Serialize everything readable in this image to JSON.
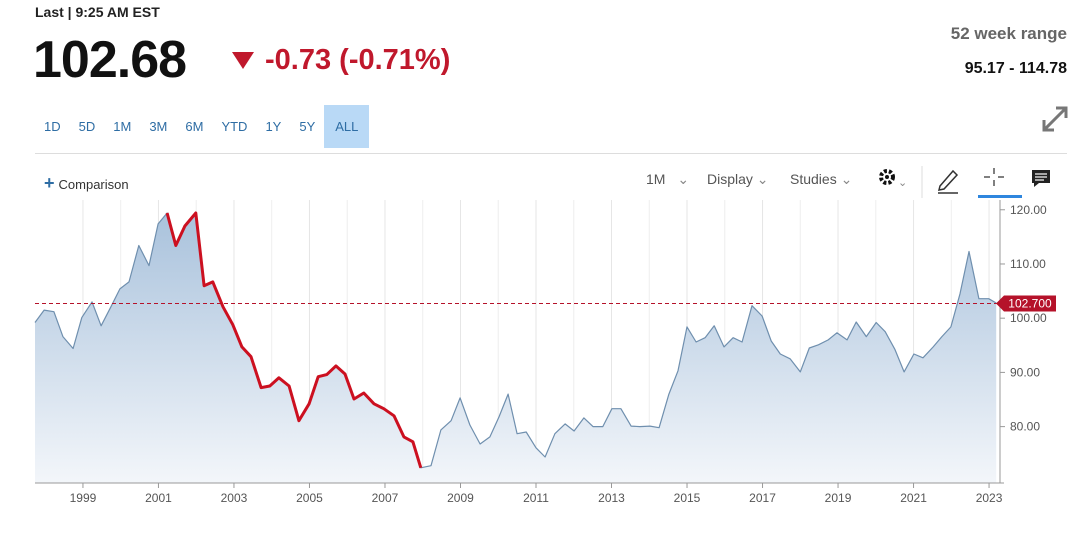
{
  "header": {
    "last": "Last | 9:25 AM EST",
    "price": "102.68",
    "change": "-0.73 (-0.71%)",
    "range_title": "52 week range",
    "range": "95.17 - 114.78"
  },
  "ranges": {
    "items": [
      "1D",
      "5D",
      "1M",
      "3M",
      "6M",
      "YTD",
      "1Y",
      "5Y",
      "ALL"
    ],
    "active": 8
  },
  "toolbar": {
    "comparison": "Comparison",
    "interval": "1M",
    "display": "Display",
    "studies": "Studies"
  },
  "chart_data": {
    "type": "area",
    "xlim": [
      1997.73,
      2023.29
    ],
    "ylim": [
      69.6,
      121.8
    ],
    "xticks": [
      1999,
      2001,
      2003,
      2005,
      2007,
      2009,
      2011,
      2013,
      2015,
      2017,
      2019,
      2021,
      2023
    ],
    "yticks": [
      {
        "value": 80,
        "label": "80.00"
      },
      {
        "value": 90,
        "label": "90.00"
      },
      {
        "value": 100,
        "label": "100.00"
      },
      {
        "value": 110,
        "label": "110.00"
      },
      {
        "value": 120,
        "label": "120.00"
      }
    ],
    "grid": true,
    "last_price": {
      "value": 102.7,
      "label": "102.700",
      "color": "#b5122a"
    },
    "series": [
      {
        "color": "#6f8fae",
        "fill": "#c9d9ea",
        "x": [
          1997.73,
          1997.97,
          1998.23,
          1998.47,
          1998.74,
          1998.97,
          1999.24,
          1999.48,
          1999.74,
          1999.98,
          2000.22,
          2000.48,
          2000.75,
          2000.99,
          2001.23,
          2001.46,
          2001.7,
          2001.99,
          2002.21,
          2002.44,
          2002.71,
          2002.97,
          2003.21,
          2003.45,
          2003.72,
          2003.95,
          2004.19,
          2004.46,
          2004.72,
          2004.99,
          2005.23,
          2005.46,
          2005.7,
          2005.94,
          2006.18,
          2006.44,
          2006.71,
          2006.97,
          2007.24,
          2007.5,
          2007.74,
          2007.95,
          2008.22,
          2008.48,
          2008.75,
          2008.99,
          2009.25,
          2009.52,
          2009.78,
          2010.02,
          2010.26,
          2010.5,
          2010.74,
          2011.0,
          2011.24,
          2011.5,
          2011.77,
          2012.01,
          2012.27,
          2012.51,
          2012.77,
          2013.01,
          2013.25,
          2013.52,
          2013.75,
          2014.02,
          2014.26,
          2014.52,
          2014.76,
          2015.0,
          2015.24,
          2015.48,
          2015.72,
          2015.98,
          2016.22,
          2016.46,
          2016.72,
          2016.99,
          2017.23,
          2017.47,
          2017.73,
          2018.0,
          2018.24,
          2018.48,
          2018.74,
          2018.97,
          2019.24,
          2019.48,
          2019.75,
          2020.01,
          2020.25,
          2020.51,
          2020.75,
          2021.01,
          2021.25,
          2021.52,
          2021.75,
          2021.99,
          2022.23,
          2022.47,
          2022.73,
          2022.99,
          2023.19
        ],
        "values": [
          99.2,
          101.5,
          101.2,
          96.6,
          94.4,
          100.1,
          103.0,
          98.6,
          102.1,
          105.4,
          106.7,
          113.4,
          109.7,
          117.4,
          119.4,
          113.4,
          117.0,
          119.4,
          106.0,
          106.7,
          102.1,
          98.8,
          94.7,
          92.9,
          87.2,
          87.5,
          89.0,
          87.5,
          81.1,
          84.2,
          89.2,
          89.6,
          91.2,
          89.7,
          85.1,
          86.2,
          84.2,
          83.3,
          82.0,
          78.1,
          77.2,
          72.4,
          72.8,
          79.4,
          81.1,
          85.3,
          80.3,
          76.8,
          78.1,
          81.8,
          86.0,
          78.7,
          79.0,
          76.1,
          74.4,
          78.7,
          80.5,
          79.2,
          81.6,
          80.0,
          80.0,
          83.3,
          83.3,
          80.1,
          80.0,
          80.1,
          79.8,
          86.0,
          90.3,
          98.4,
          95.6,
          96.4,
          98.6,
          94.7,
          96.4,
          95.6,
          102.3,
          100.4,
          95.8,
          93.4,
          92.5,
          90.1,
          94.5,
          95.1,
          96.0,
          97.3,
          96.0,
          99.3,
          96.6,
          99.2,
          97.5,
          94.2,
          90.1,
          93.4,
          92.7,
          94.7,
          96.6,
          98.4,
          104.5,
          112.3,
          103.6,
          103.6,
          102.8
        ]
      },
      {
        "color": "#cc1020",
        "x": [
          2001.23,
          2001.46,
          2001.7,
          2001.99,
          2002.21,
          2002.44,
          2002.71,
          2002.97,
          2003.21,
          2003.45,
          2003.72,
          2003.95,
          2004.19,
          2004.46,
          2004.72,
          2004.99,
          2005.23,
          2005.46,
          2005.7,
          2005.94,
          2006.18,
          2006.44,
          2006.71,
          2006.97,
          2007.24,
          2007.5,
          2007.74,
          2007.95
        ],
        "values": [
          119.4,
          113.4,
          117.0,
          119.4,
          106.0,
          106.7,
          102.1,
          98.8,
          94.7,
          92.9,
          87.2,
          87.5,
          89.0,
          87.5,
          81.1,
          84.2,
          89.2,
          89.6,
          91.2,
          89.7,
          85.1,
          86.2,
          84.2,
          83.3,
          82.0,
          78.1,
          77.2,
          72.4
        ]
      }
    ]
  }
}
